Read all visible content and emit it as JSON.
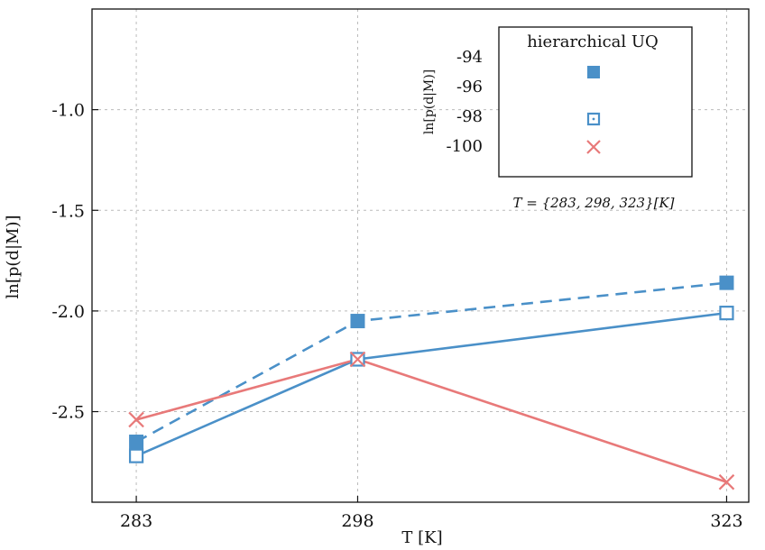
{
  "chart_data": {
    "type": "line",
    "xlabel": "T [K]",
    "ylabel": "ln[p(d|M)]",
    "x": [
      283,
      298,
      323
    ],
    "xticks": [
      "283",
      "298",
      "323"
    ],
    "yticks": [
      {
        "value": -1.0,
        "label": "-1.0"
      },
      {
        "value": -1.5,
        "label": "-1.5"
      },
      {
        "value": -2.0,
        "label": "-2.0"
      },
      {
        "value": -2.5,
        "label": "-2.5"
      }
    ],
    "xlim": [
      280,
      324.5
    ],
    "ylim": [
      -2.95,
      -0.5
    ],
    "grid": true,
    "series": [
      {
        "marker": "filled-square",
        "line": "dashed",
        "color": "#4a90c8",
        "values": [
          -2.65,
          -2.05,
          -1.86
        ]
      },
      {
        "marker": "open-square",
        "line": "solid",
        "color": "#4a90c8",
        "values": [
          -2.72,
          -2.24,
          -2.01
        ]
      },
      {
        "marker": "cross",
        "line": "solid",
        "color": "#e87979",
        "values": [
          -2.54,
          -2.24,
          -2.85
        ]
      }
    ],
    "inset": {
      "title": "hierarchical UQ",
      "ylabel": "ln[p(d|M)]",
      "yticks": [
        "-94",
        "-96",
        "-98",
        "-100"
      ],
      "markers": [
        {
          "marker": "filled-square",
          "color": "#4a90c8"
        },
        {
          "marker": "open-square",
          "color": "#4a90c8"
        },
        {
          "marker": "cross",
          "color": "#e87979"
        }
      ],
      "annotation": "T = {283, 298, 323}[K]"
    }
  }
}
